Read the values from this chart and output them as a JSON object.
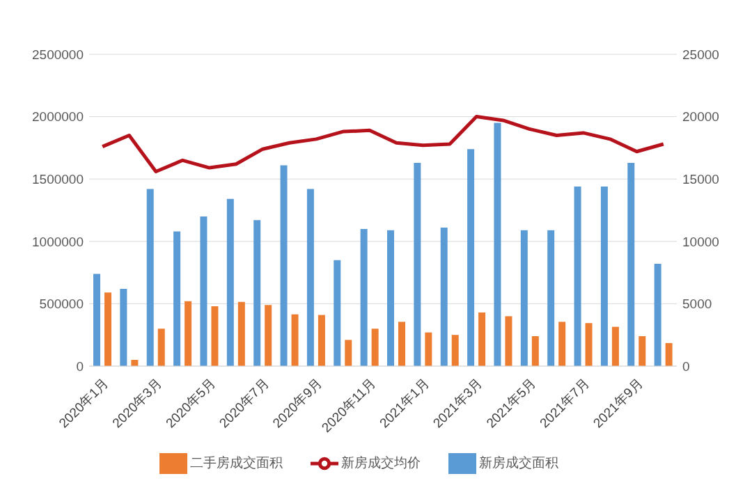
{
  "chart_data": {
    "type": "bar",
    "categories": [
      "2020年1月",
      null,
      "2020年3月",
      null,
      "2020年5月",
      null,
      "2020年7月",
      null,
      "2020年9月",
      null,
      "2020年11月",
      null,
      "2021年1月",
      null,
      "2021年3月",
      null,
      "2021年5月",
      null,
      "2021年7月",
      null,
      "2021年9月",
      null
    ],
    "series": [
      {
        "name": "新房成交面积",
        "color": "#5b9bd5",
        "values": [
          740000,
          620000,
          1420000,
          1080000,
          1200000,
          1340000,
          1170000,
          1610000,
          1420000,
          850000,
          1100000,
          1090000,
          1630000,
          1110000,
          1740000,
          1950000,
          1090000,
          1090000,
          1440000,
          1440000,
          1630000,
          820000
        ]
      },
      {
        "name": "二手房成交面积",
        "color": "#ed7d31",
        "values": [
          590000,
          50000,
          300000,
          520000,
          480000,
          515000,
          490000,
          415000,
          410000,
          210000,
          300000,
          355000,
          270000,
          250000,
          430000,
          400000,
          240000,
          355000,
          345000,
          315000,
          240000,
          185000
        ]
      },
      {
        "name": "新房成交均价",
        "type": "line",
        "axis": "y2",
        "color": "#b5121b",
        "values": [
          17600,
          18500,
          15600,
          16500,
          15900,
          16200,
          17400,
          17900,
          18200,
          18800,
          18900,
          17900,
          17700,
          17800,
          20000,
          19700,
          19000,
          18500,
          18700,
          18200,
          17200,
          17800
        ]
      }
    ],
    "ylim": [
      0,
      2500000
    ],
    "yticks": [
      0,
      500000,
      1000000,
      1500000,
      2000000,
      2500000
    ],
    "y2lim": [
      0,
      25000
    ],
    "y2ticks": [
      0,
      5000,
      10000,
      15000,
      20000,
      25000
    ],
    "grid": "y",
    "legend": "bottom",
    "marker": "none",
    "line_style": "solid"
  }
}
